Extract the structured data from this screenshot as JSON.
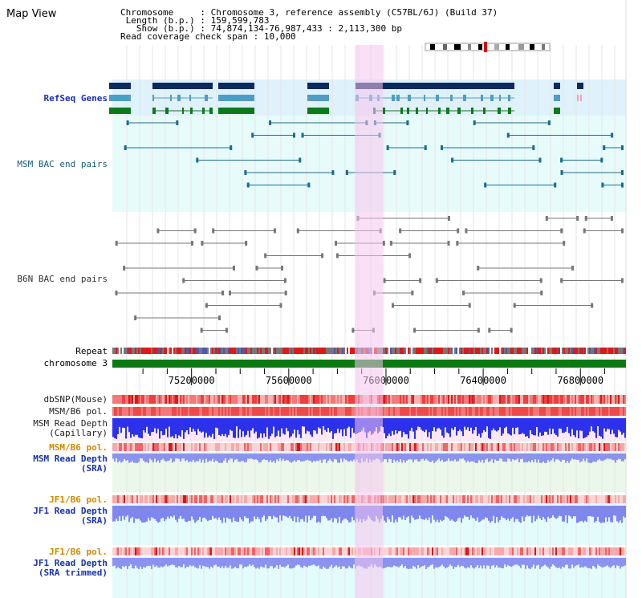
{
  "page_title": "Map View",
  "info": {
    "chromosome_label": "Chromosome",
    "chromosome_value": "Chromosome 3, reference assembly (C57BL/6J) (Build 37)",
    "length_label": "Length (b.p.)",
    "length_value": "159,599,783",
    "show_label": "Show (b.p.)",
    "show_value": "74,874,134-76,987,433 : 2,113,300 bp",
    "coverage_label": "Read coverage check span",
    "coverage_value": "10,000"
  },
  "tracks": {
    "refseq": "RefSeq Genes",
    "msm_bac": "MSM BAC end pairs",
    "b6n_bac": "B6N BAC end pairs",
    "repeat": "Repeat",
    "chromosome": "chromosome 3",
    "dbsnp": "dbSNP(Mouse)",
    "msm_b6_pol_1": "MSM/B6 pol.",
    "msm_depth_cap_1": "MSM Read Depth",
    "msm_depth_cap_2": "(Capillary)",
    "msm_b6_pol_2": "MSM/B6 pol.",
    "msm_depth_sra_1": "MSM Read Depth",
    "msm_depth_sra_2": "(SRA)",
    "jf1_b6_pol_1": "JF1/B6 pol.",
    "jf1_depth_sra_1": "JF1 Read Depth",
    "jf1_depth_sra_2": "(SRA)",
    "jf1_b6_pol_2": "JF1/B6 pol.",
    "jf1_depth_trim_1": "JF1 Read Depth",
    "jf1_depth_trim_2": "(SRA trimmed)"
  },
  "axis": {
    "ticks": [
      "75200000",
      "75600000",
      "76000000",
      "76400000",
      "76800000"
    ]
  },
  "colors": {
    "refseq_bg": "#dff1fa",
    "bac_bg": "#e8fbfb",
    "highlight": "#f6c6ee",
    "gene_dark": "#0b2a5e",
    "gene_light": "#4f9cc4",
    "gene_green": "#0a7a1a",
    "msm_line": "#1a6e8a",
    "b6n_line": "#777777",
    "depth_blue": "#2b32ea",
    "depth_light": "#8c93ef",
    "pol_red": "#ee3b3b",
    "chrom_green": "#0c7a12"
  }
}
